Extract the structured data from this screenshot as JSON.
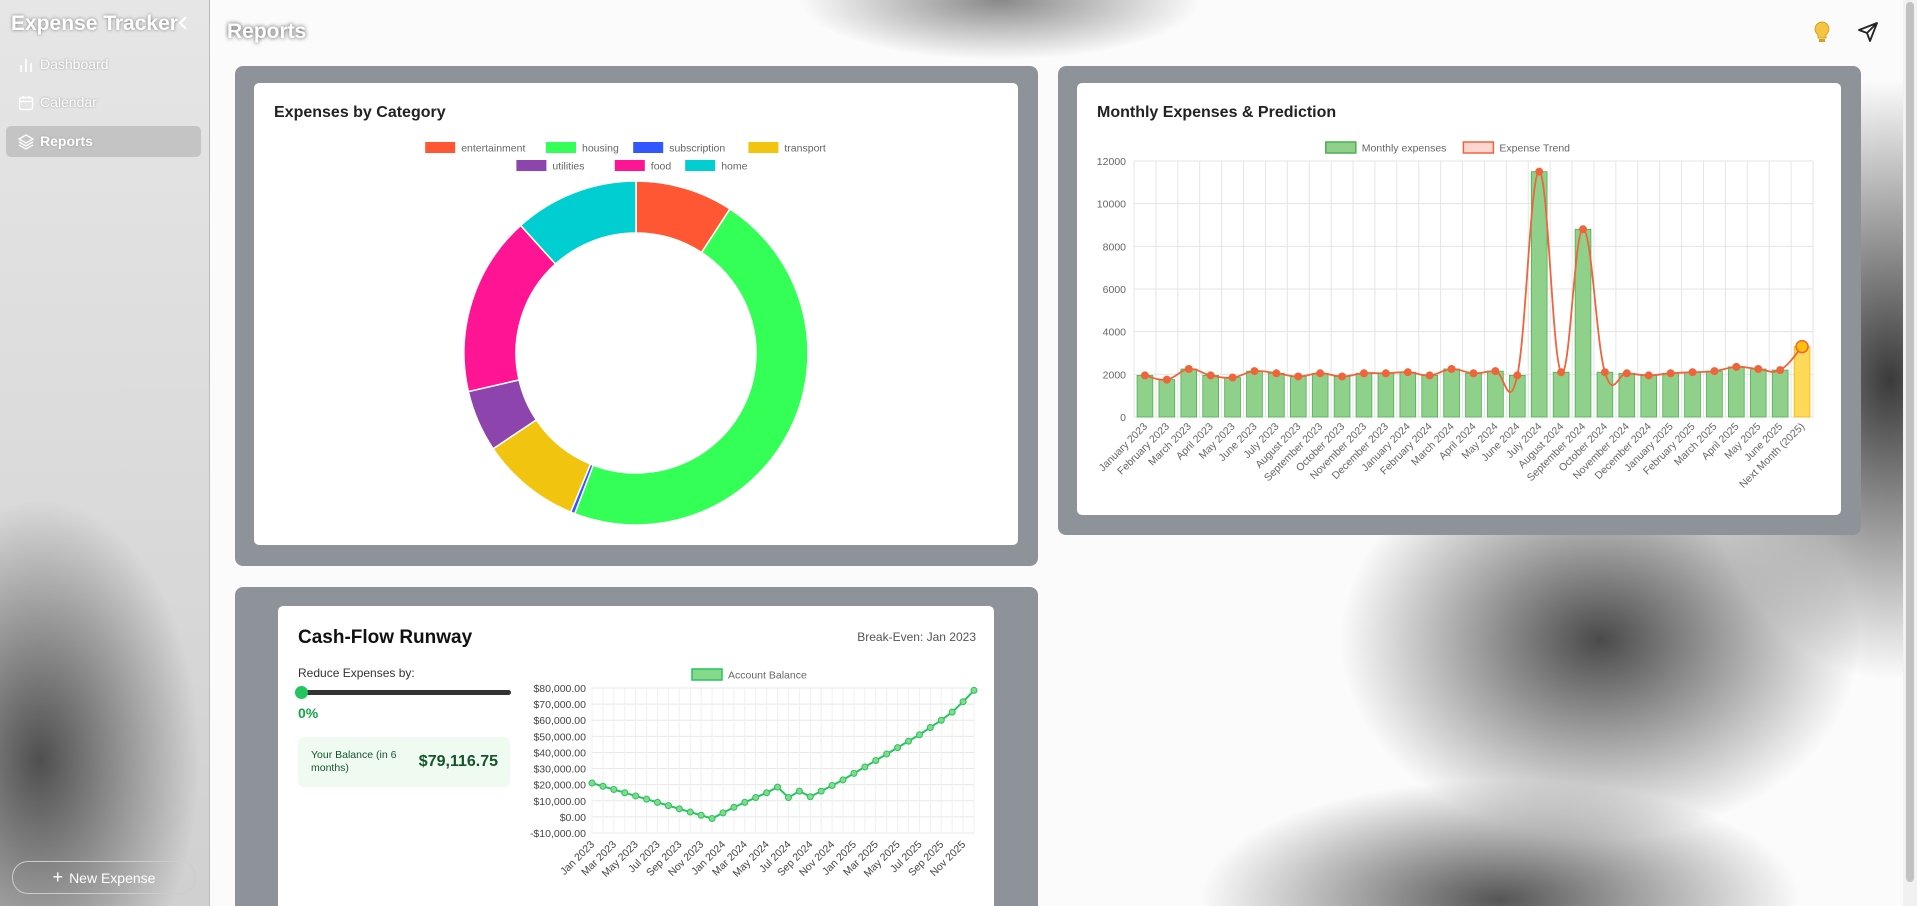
{
  "sidebar": {
    "title": "Expense Tracker",
    "nav": [
      "Dashboard",
      "Calendar",
      "Reports"
    ],
    "button": "New Expense"
  },
  "header": {
    "title": "Reports"
  },
  "runway": {
    "break_even": "Break-Even: Jan 2023",
    "reduce_label": "Reduce Expenses by:",
    "reduce_value": "0%",
    "balance_label": "Your Balance (in 6 months)",
    "balance_value": "$79,116.75"
  },
  "chart_data": [
    {
      "type": "doughnut",
      "title": "Expenses by Category",
      "categories": [
        "entertainment",
        "housing",
        "subscription",
        "transport",
        "utilities",
        "food",
        "home"
      ],
      "values": [
        9.2,
        46.6,
        0.4,
        9.4,
        5.8,
        16.9,
        11.7
      ],
      "colors": [
        "#ff5733",
        "#33ff57",
        "#3357ff",
        "#f1c40f",
        "#8e44ad",
        "#ff1493",
        "#00ced1"
      ]
    },
    {
      "type": "bar",
      "title": "Monthly Expenses & Prediction",
      "categories": [
        "January 2023",
        "February 2023",
        "March 2023",
        "April 2023",
        "May 2023",
        "June 2023",
        "July 2023",
        "August 2023",
        "September 2023",
        "October 2023",
        "November 2023",
        "December 2023",
        "January 2024",
        "February 2024",
        "March 2024",
        "April 2024",
        "May 2024",
        "June 2024",
        "July 2024",
        "August 2024",
        "September 2024",
        "October 2024",
        "November 2024",
        "December 2024",
        "January 2025",
        "February 2025",
        "March 2025",
        "April 2025",
        "May 2025",
        "June 2025",
        "Next Month (2025)"
      ],
      "series": [
        {
          "name": "Monthly expenses",
          "color": "#8fd18a",
          "border_color": "#4caf50",
          "last_color": "#ffd95a",
          "values": [
            1950,
            1750,
            2250,
            1950,
            1850,
            2150,
            2050,
            1900,
            2050,
            1900,
            2050,
            2050,
            2100,
            1950,
            2250,
            2050,
            2150,
            1950,
            11500,
            2100,
            8800,
            2100,
            2050,
            1950,
            2050,
            2100,
            2150,
            2350,
            2250,
            2200,
            3300
          ]
        },
        {
          "name": "Expense Trend",
          "type": "line",
          "color": "#f0643c",
          "last_color": "#ffc107",
          "values": [
            1950,
            1750,
            2250,
            1950,
            1850,
            2150,
            2050,
            1900,
            2050,
            1900,
            2050,
            2050,
            2100,
            1950,
            2250,
            2050,
            2150,
            1950,
            11500,
            2100,
            8800,
            2100,
            2050,
            1950,
            2050,
            2100,
            2150,
            2350,
            2250,
            2200,
            3300
          ]
        }
      ],
      "ylim": [
        0,
        12000
      ],
      "yticks": [
        0,
        2000,
        4000,
        6000,
        8000,
        10000,
        12000
      ],
      "grid": true
    },
    {
      "type": "line",
      "title": "Cash-Flow Runway",
      "categories": [
        "Jan 2023",
        null,
        "Mar 2023",
        null,
        "May 2023",
        null,
        "Jul 2023",
        null,
        "Sep 2023",
        null,
        "Nov 2023",
        null,
        "Jan 2024",
        null,
        "Mar 2024",
        null,
        "May 2024",
        null,
        "Jul 2024",
        null,
        "Sep 2024",
        null,
        "Nov 2024",
        null,
        "Jan 2025",
        null,
        "Mar 2025",
        null,
        "May 2025",
        null,
        "Jul 2025",
        null,
        "Sep 2025",
        null,
        "Nov 2025",
        null
      ],
      "series": [
        {
          "name": "Account Balance",
          "color": "#22c55e",
          "point_color": "#86d98a",
          "values": [
            21000,
            19000,
            17000,
            15000,
            13000,
            11000,
            9000,
            7000,
            5000,
            3000,
            1000,
            -1000,
            2500,
            6000,
            9000,
            12000,
            15000,
            18500,
            12000,
            16000,
            12500,
            16000,
            19500,
            23000,
            27000,
            31000,
            35000,
            39000,
            43000,
            47000,
            51000,
            55500,
            60000,
            65000,
            71500,
            78500
          ]
        }
      ],
      "ylim": [
        -10000,
        80000
      ],
      "yticks": [
        {
          "value": -10000,
          "label": "-$10,000.00"
        },
        {
          "value": 0,
          "label": "$0.00"
        },
        {
          "value": 10000,
          "label": "$10,000.00"
        },
        {
          "value": 20000,
          "label": "$20,000.00"
        },
        {
          "value": 30000,
          "label": "$30,000.00"
        },
        {
          "value": 40000,
          "label": "$40,000.00"
        },
        {
          "value": 50000,
          "label": "$50,000.00"
        },
        {
          "value": 60000,
          "label": "$60,000.00"
        },
        {
          "value": 70000,
          "label": "$70,000.00"
        },
        {
          "value": 80000,
          "label": "$80,000.00"
        }
      ],
      "grid": true
    }
  ]
}
